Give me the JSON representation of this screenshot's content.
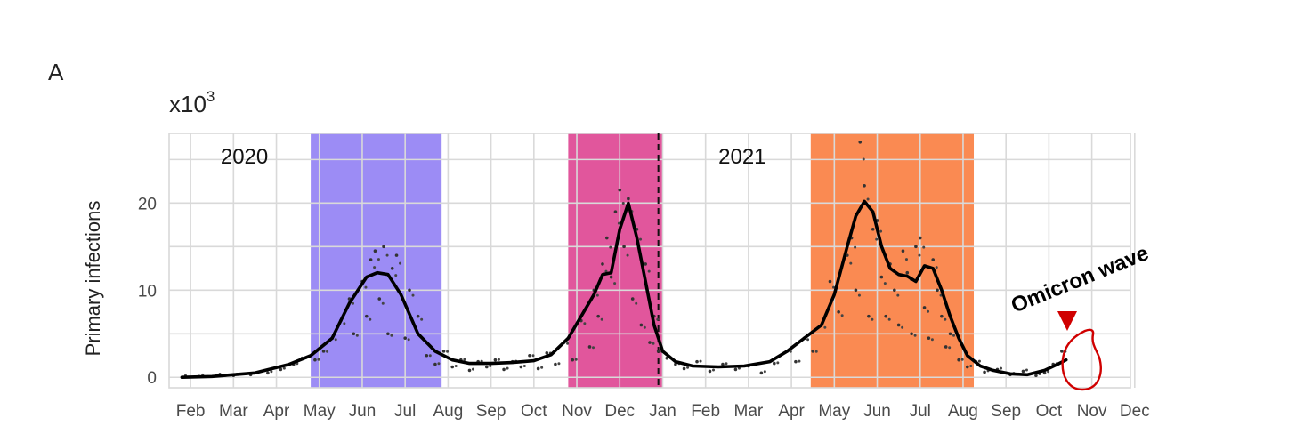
{
  "panel_label": "A",
  "annotation": {
    "text": "Omicron wave",
    "color": "#d00000"
  },
  "colors": {
    "wave1": "#9c8cf5",
    "wave2": "#e1569c",
    "wave3": "#fa8a52",
    "line": "#000000",
    "grid": "#d9d9d9",
    "axis_text": "#4a4a4a"
  },
  "chart_data": {
    "type": "line",
    "title": "",
    "xlabel": "",
    "ylabel": "Primary infections",
    "y_scale_label": "x10",
    "y_scale_exponent": "3",
    "ylim": [
      -1.2,
      28
    ],
    "yticks": [
      0,
      10,
      20
    ],
    "ytick_labels": [
      "0",
      "10",
      "20"
    ],
    "x_range_months": [
      2020.0,
      2021.917
    ],
    "xtick_labels": [
      "Feb",
      "Mar",
      "Apr",
      "May",
      "Jun",
      "Jul",
      "Aug",
      "Sep",
      "Oct",
      "Nov",
      "Dec",
      "Jan",
      "Feb",
      "Mar",
      "Apr",
      "May",
      "Jun",
      "Jul",
      "Aug",
      "Sep",
      "Oct",
      "Nov",
      "Dec"
    ],
    "grid": true,
    "year_labels": [
      {
        "label": "2020",
        "month": 1.2
      },
      {
        "label": "2021",
        "month": 12.8
      }
    ],
    "year_boundary_month": 11.4,
    "shaded_periods": [
      {
        "start": 3.3,
        "end": 6.35,
        "color_key": "wave1"
      },
      {
        "start": 9.3,
        "end": 11.5,
        "color_key": "wave2"
      },
      {
        "start": 14.95,
        "end": 18.75,
        "color_key": "wave3"
      }
    ],
    "series": [
      {
        "kind": "smoothed",
        "x": [
          0.3,
          1.0,
          2.0,
          2.8,
          3.3,
          3.8,
          4.2,
          4.6,
          4.85,
          5.1,
          5.4,
          5.8,
          6.2,
          6.6,
          7.0,
          7.5,
          8.0,
          8.5,
          8.9,
          9.3,
          9.6,
          9.9,
          10.1,
          10.3,
          10.5,
          10.7,
          10.9,
          11.1,
          11.3,
          11.5,
          11.8,
          12.2,
          12.8,
          13.4,
          14.0,
          14.4,
          14.8,
          15.2,
          15.5,
          15.8,
          16.0,
          16.2,
          16.4,
          16.6,
          16.8,
          17.0,
          17.2,
          17.4,
          17.6,
          17.8,
          18.0,
          18.2,
          18.4,
          18.6,
          18.9,
          19.2,
          19.6,
          20.0,
          20.4,
          20.7,
          20.9
        ],
        "y": [
          0.0,
          0.1,
          0.5,
          1.5,
          2.5,
          4.5,
          8.5,
          11.5,
          12.0,
          11.8,
          9.5,
          5.0,
          3.0,
          2.0,
          1.6,
          1.6,
          1.7,
          1.9,
          2.6,
          4.5,
          7.0,
          9.5,
          11.8,
          12.0,
          17.0,
          20.0,
          16.0,
          11.0,
          6.0,
          3.0,
          1.8,
          1.3,
          1.2,
          1.3,
          1.8,
          3.0,
          4.5,
          6.0,
          9.5,
          15.0,
          18.5,
          20.2,
          19.0,
          15.0,
          12.5,
          11.8,
          11.6,
          11.0,
          12.8,
          12.5,
          10.0,
          7.0,
          4.5,
          2.5,
          1.3,
          0.8,
          0.4,
          0.3,
          0.8,
          1.5,
          2.0
        ]
      },
      {
        "kind": "daily",
        "x": [
          0.3,
          0.7,
          1.1,
          1.5,
          1.9,
          2.3,
          2.6,
          2.9,
          3.1,
          3.4,
          3.6,
          3.8,
          4.0,
          4.2,
          4.3,
          4.5,
          4.6,
          4.7,
          4.8,
          4.9,
          5.0,
          5.1,
          5.2,
          5.3,
          5.5,
          5.6,
          5.8,
          6.0,
          6.2,
          6.4,
          6.6,
          6.8,
          7.0,
          7.2,
          7.4,
          7.6,
          7.8,
          8.0,
          8.2,
          8.4,
          8.6,
          8.8,
          9.0,
          9.2,
          9.4,
          9.6,
          9.8,
          9.9,
          10.0,
          10.1,
          10.2,
          10.3,
          10.4,
          10.5,
          10.6,
          10.7,
          10.8,
          10.9,
          11.0,
          11.1,
          11.2,
          11.3,
          11.4,
          11.6,
          11.8,
          12.0,
          12.3,
          12.6,
          12.9,
          13.2,
          13.5,
          13.8,
          14.1,
          14.4,
          14.6,
          14.8,
          15.0,
          15.2,
          15.4,
          15.6,
          15.8,
          15.9,
          16.0,
          16.1,
          16.2,
          16.3,
          16.4,
          16.5,
          16.6,
          16.7,
          16.8,
          16.9,
          17.0,
          17.1,
          17.2,
          17.3,
          17.4,
          17.5,
          17.6,
          17.7,
          17.8,
          17.9,
          18.0,
          18.1,
          18.2,
          18.4,
          18.6,
          18.8,
          19.0,
          19.3,
          19.6,
          19.9,
          20.2,
          20.4,
          20.6,
          20.8
        ],
        "y": [
          0.0,
          0.1,
          0.2,
          0.2,
          0.3,
          0.5,
          0.9,
          1.5,
          2.2,
          2.0,
          3.0,
          4.5,
          6.5,
          9.0,
          5.0,
          11.0,
          7.0,
          13.5,
          14.5,
          9.0,
          15.0,
          5.0,
          12.5,
          14.0,
          4.5,
          10.0,
          7.0,
          2.5,
          1.5,
          3.0,
          1.2,
          2.0,
          0.8,
          1.8,
          1.2,
          2.0,
          0.9,
          1.8,
          1.2,
          2.5,
          1.0,
          2.8,
          1.5,
          4.0,
          2.0,
          6.5,
          3.5,
          10.0,
          7.0,
          13.0,
          16.0,
          11.5,
          19.0,
          21.5,
          15.0,
          20.5,
          9.0,
          17.0,
          6.0,
          13.0,
          4.0,
          7.0,
          3.0,
          2.2,
          1.5,
          1.0,
          1.8,
          0.7,
          1.5,
          0.9,
          1.3,
          0.5,
          1.6,
          3.0,
          1.8,
          4.5,
          3.0,
          6.0,
          11.0,
          7.5,
          14.0,
          16.0,
          10.0,
          27.0,
          22.0,
          7.0,
          17.0,
          18.0,
          11.5,
          7.0,
          13.0,
          10.0,
          6.0,
          14.5,
          12.0,
          5.0,
          15.0,
          16.0,
          8.0,
          4.5,
          13.5,
          10.0,
          7.0,
          3.5,
          5.0,
          2.0,
          1.2,
          1.8,
          0.6,
          0.9,
          0.3,
          0.7,
          0.2,
          0.5,
          1.5,
          3.0
        ]
      }
    ]
  }
}
